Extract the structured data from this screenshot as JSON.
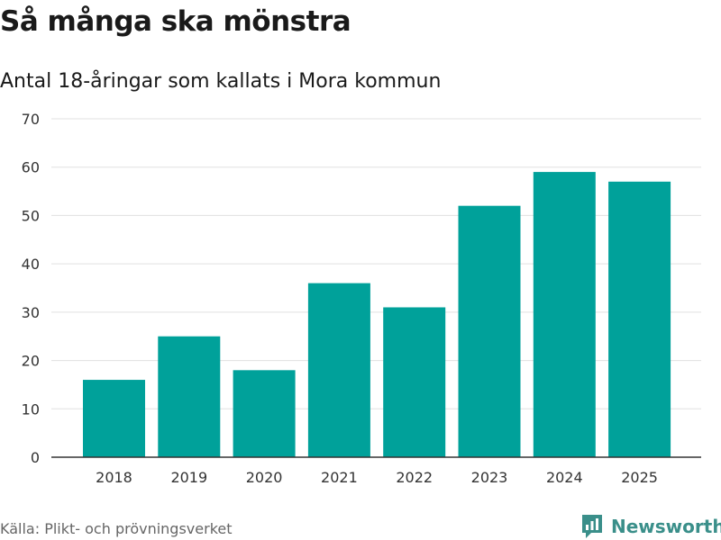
{
  "header": {
    "title": "Så många ska mönstra",
    "subtitle": "Antal 18-åringar som kallats i Mora kommun"
  },
  "footer": {
    "source": "Källa: Plikt- och prövningsverket",
    "brand": "Newsworthy",
    "brand_color": "#3a8f8a"
  },
  "chart_data": {
    "type": "bar",
    "title": "Så många ska mönstra",
    "subtitle": "Antal 18-åringar som kallats i Mora kommun",
    "xlabel": "",
    "ylabel": "",
    "categories": [
      "2018",
      "2019",
      "2020",
      "2021",
      "2022",
      "2023",
      "2024",
      "2025"
    ],
    "values": [
      16,
      25,
      18,
      36,
      31,
      52,
      59,
      57
    ],
    "ylim": [
      0,
      70
    ],
    "yticks": [
      0,
      10,
      20,
      30,
      40,
      50,
      60,
      70
    ],
    "grid": true,
    "bar_color": "#00a19a",
    "grid_color": "#e0e0e0",
    "axis_color": "#333333"
  }
}
